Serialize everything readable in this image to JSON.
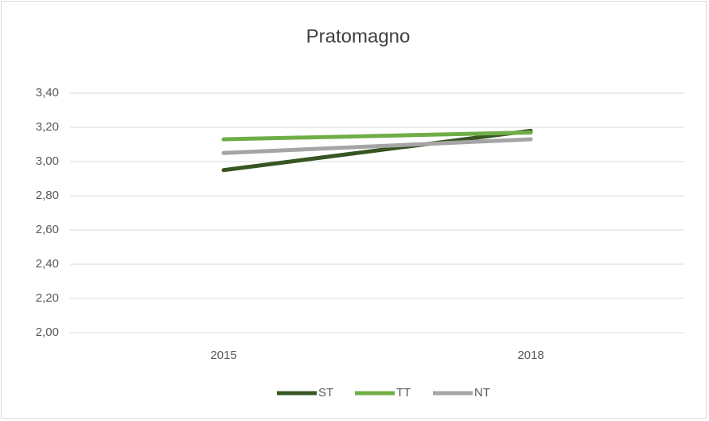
{
  "chart_data": {
    "type": "line",
    "title": "Pratomagno",
    "categories": [
      "2015",
      "2018"
    ],
    "series": [
      {
        "name": "ST",
        "color": "#375623",
        "values": [
          2.95,
          3.18
        ]
      },
      {
        "name": "TT",
        "color": "#70ad47",
        "values": [
          3.13,
          3.17
        ]
      },
      {
        "name": "NT",
        "color": "#a5a5a5",
        "values": [
          3.05,
          3.13
        ]
      }
    ],
    "ylim": [
      2.0,
      3.4
    ],
    "yticks": [
      {
        "value": 2.0,
        "label": "2,00"
      },
      {
        "value": 2.2,
        "label": "2,20"
      },
      {
        "value": 2.4,
        "label": "2,40"
      },
      {
        "value": 2.6,
        "label": "2,60"
      },
      {
        "value": 2.8,
        "label": "2,80"
      },
      {
        "value": 3.0,
        "label": "3,00"
      },
      {
        "value": 3.2,
        "label": "3,20"
      },
      {
        "value": 3.4,
        "label": "3,40"
      }
    ],
    "grid": true,
    "legend": "bottom"
  }
}
